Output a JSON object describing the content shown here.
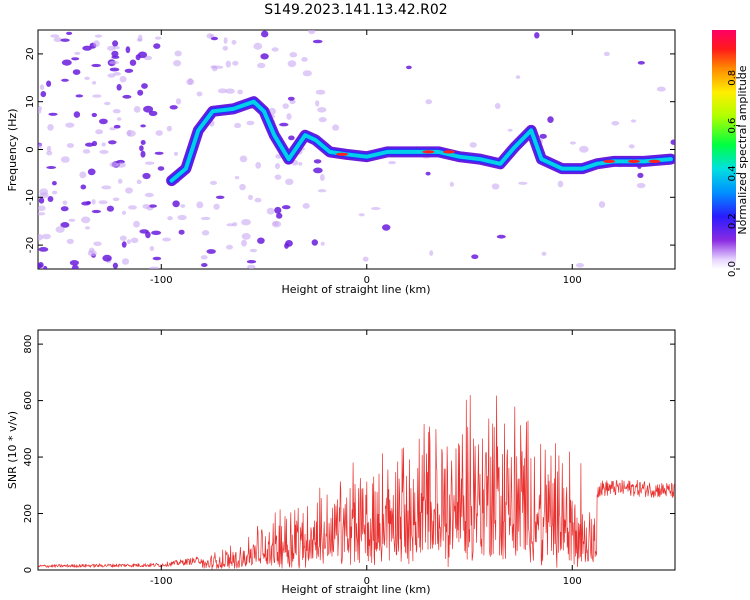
{
  "title": "S149.2023.141.13.42.R02",
  "colors": {
    "trace": "#e8312f",
    "axis": "#000000",
    "background": "#ffffff"
  },
  "chart_data": [
    {
      "type": "heatmap",
      "xlabel": "Height of straight line (km)",
      "ylabel": "Frequency (Hz)",
      "xlim": [
        -160,
        150
      ],
      "ylim": [
        -25,
        25
      ],
      "x_ticks": [
        -100,
        0,
        100
      ],
      "x_tick_labels": [
        "-100",
        "0",
        "100"
      ],
      "y_ticks": [
        -20,
        -10,
        0,
        10,
        20
      ],
      "y_tick_labels": [
        "-20",
        "-10",
        "0",
        "10",
        "20"
      ],
      "colorbar": {
        "label": "Normalized spectral amplitude",
        "range": [
          0,
          1
        ],
        "ticks": [
          0,
          0.2,
          0.4,
          0.6,
          0.8
        ],
        "tick_labels": [
          "0.0",
          "0.2",
          "0.4",
          "0.6",
          "0.8"
        ]
      },
      "ridge": [
        {
          "x": -95,
          "y": -6.5
        },
        {
          "x": -88,
          "y": -4
        },
        {
          "x": -82,
          "y": 4
        },
        {
          "x": -75,
          "y": 8
        },
        {
          "x": -65,
          "y": 8.5
        },
        {
          "x": -55,
          "y": 10
        },
        {
          "x": -50,
          "y": 8
        },
        {
          "x": -45,
          "y": 3
        },
        {
          "x": -38,
          "y": -2
        },
        {
          "x": -30,
          "y": 3
        },
        {
          "x": -25,
          "y": 2
        },
        {
          "x": -18,
          "y": -0.5
        },
        {
          "x": -10,
          "y": -1
        },
        {
          "x": 0,
          "y": -1.5
        },
        {
          "x": 10,
          "y": -0.5
        },
        {
          "x": 20,
          "y": -0.5
        },
        {
          "x": 35,
          "y": -0.5
        },
        {
          "x": 45,
          "y": -1.5
        },
        {
          "x": 55,
          "y": -2
        },
        {
          "x": 65,
          "y": -3
        },
        {
          "x": 72,
          "y": 0.5
        },
        {
          "x": 80,
          "y": 4
        },
        {
          "x": 85,
          "y": -2
        },
        {
          "x": 95,
          "y": -4
        },
        {
          "x": 105,
          "y": -4
        },
        {
          "x": 112,
          "y": -3
        },
        {
          "x": 120,
          "y": -2.5
        },
        {
          "x": 135,
          "y": -2.5
        },
        {
          "x": 148,
          "y": -2
        }
      ]
    },
    {
      "type": "line",
      "xlabel": "Height of straight line (km)",
      "ylabel": "SNR (10 * v/v)",
      "xlim": [
        -160,
        150
      ],
      "ylim": [
        0,
        850
      ],
      "x_ticks": [
        -100,
        0,
        100
      ],
      "x_tick_labels": [
        "-100",
        "0",
        "100"
      ],
      "y_ticks": [
        0,
        200,
        400,
        600,
        800
      ],
      "y_tick_labels": [
        "0",
        "200",
        "400",
        "600",
        "800"
      ],
      "envelope": {
        "x": [
          -160,
          -100,
          -80,
          -60,
          -40,
          -20,
          0,
          20,
          40,
          50,
          60,
          70,
          80,
          90,
          100,
          110,
          115,
          130,
          150
        ],
        "y": [
          15,
          20,
          40,
          110,
          230,
          310,
          400,
          480,
          560,
          620,
          650,
          600,
          520,
          470,
          400,
          280,
          290,
          290,
          280
        ]
      }
    }
  ]
}
